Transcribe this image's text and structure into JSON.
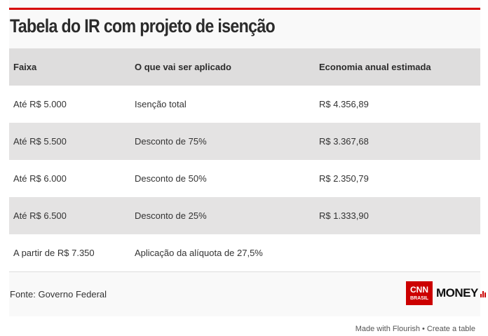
{
  "title": "Tabela do IR com projeto de isenção",
  "headers": [
    "Faixa",
    "O que vai ser aplicado",
    "Economia anual estimada"
  ],
  "rows": [
    [
      "Até R$ 5.000",
      "Isenção total",
      "R$ 4.356,89"
    ],
    [
      "Até R$ 5.500",
      "Desconto de 75%",
      "R$ 3.367,68"
    ],
    [
      "Até R$ 6.000",
      "Desconto de 50%",
      "R$ 2.350,79"
    ],
    [
      "Até R$ 6.500",
      "Desconto de 25%",
      "R$ 1.333,90"
    ],
    [
      "A partir de R$ 7.350",
      "Aplicação da alíquota de 27,5%",
      ""
    ]
  ],
  "source": "Fonte: Governo Federal",
  "logo": {
    "cnn": "CNN",
    "brasil": "BRASIL",
    "money": "MONEY"
  },
  "footer": {
    "made": "Made with Flourish",
    "sep": " • ",
    "create": "Create a table"
  },
  "colors": {
    "accent": "#d60000"
  }
}
